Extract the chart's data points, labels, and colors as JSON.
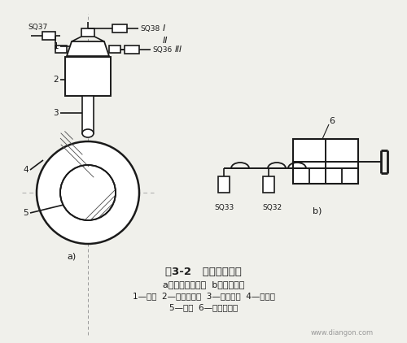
{
  "title": "图3-2   主轴定向控制",
  "subtitle1": "a）主轴定向机构  b）换挡控制",
  "subtitle2": "1—撞块  2—定向液压缸  3—定向活塞  4—定位盘",
  "subtitle3": "5—主轴  6—换挡液压缸",
  "watermark": "www.diangon.com",
  "bg_color": "#f0f0eb",
  "line_color": "#1a1a1a"
}
